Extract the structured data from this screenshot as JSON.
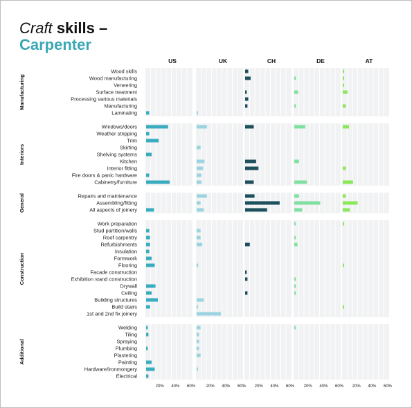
{
  "header": {
    "title_italic": "Craft",
    "title_bold": "skills –",
    "subtitle": "Carpenter"
  },
  "chart_data": {
    "type": "bar",
    "orientation": "horizontal",
    "layout": "small-multiples",
    "countries": [
      "US",
      "UK",
      "CH",
      "DE",
      "AT"
    ],
    "country_colors": [
      "#3aacc0",
      "#9bd4e0",
      "#1d4f5c",
      "#7fe0a0",
      "#8ce85a"
    ],
    "panel_xlim": [
      0,
      60
    ],
    "panel_ticks": [
      "20%",
      "40%",
      "60%"
    ],
    "groups": [
      {
        "name": "Manufacturing",
        "rows": [
          {
            "label": "Wood skills",
            "values": [
              0,
              0,
              4,
              0,
              1
            ]
          },
          {
            "label": "Wood manufacturing",
            "values": [
              0,
              0,
              7,
              2,
              1
            ]
          },
          {
            "label": "Veneering",
            "values": [
              0,
              0,
              0,
              0,
              1
            ]
          },
          {
            "label": "Surface treatment",
            "values": [
              0,
              0,
              2,
              5,
              6
            ]
          },
          {
            "label": "Processing various materials",
            "values": [
              0,
              0,
              4,
              0,
              0
            ]
          },
          {
            "label": "Manufacturing",
            "values": [
              0,
              0,
              3,
              2,
              4
            ]
          },
          {
            "label": "Laminating",
            "values": [
              4,
              1,
              0,
              0,
              0
            ]
          }
        ]
      },
      {
        "name": "Interiors",
        "rows": [
          {
            "label": "Windows/doors",
            "values": [
              28,
              13,
              11,
              14,
              8
            ]
          },
          {
            "label": "Weather stripping",
            "values": [
              4,
              0,
              0,
              0,
              0
            ]
          },
          {
            "label": "Trim",
            "values": [
              16,
              0,
              0,
              0,
              0
            ]
          },
          {
            "label": "Skirting",
            "values": [
              0,
              5,
              0,
              0,
              0
            ]
          },
          {
            "label": "Shelving systems",
            "values": [
              7,
              0,
              0,
              0,
              0
            ]
          },
          {
            "label": "Kitchen",
            "values": [
              0,
              10,
              14,
              6,
              0
            ]
          },
          {
            "label": "Interior fitting",
            "values": [
              0,
              8,
              17,
              0,
              4
            ]
          },
          {
            "label": "Fire doors & panic hardware",
            "values": [
              4,
              6,
              0,
              0,
              0
            ]
          },
          {
            "label": "Cabinetry/furniture",
            "values": [
              30,
              6,
              11,
              16,
              13
            ]
          }
        ]
      },
      {
        "name": "General",
        "rows": [
          {
            "label": "Repairs and maintenance",
            "values": [
              0,
              13,
              12,
              6,
              4
            ]
          },
          {
            "label": "Assembling/fitting",
            "values": [
              0,
              5,
              44,
              33,
              19
            ]
          },
          {
            "label": "All aspects of joinery",
            "values": [
              10,
              9,
              28,
              10,
              9
            ]
          }
        ]
      },
      {
        "name": "Construction",
        "rows": [
          {
            "label": "Work preparation",
            "values": [
              0,
              0,
              0,
              1,
              1
            ]
          },
          {
            "label": "Stud partition/walls",
            "values": [
              4,
              5,
              0,
              0,
              0
            ]
          },
          {
            "label": "Roof carpentry",
            "values": [
              5,
              5,
              0,
              1,
              0
            ]
          },
          {
            "label": "Refurbishments",
            "values": [
              5,
              7,
              6,
              4,
              0
            ]
          },
          {
            "label": "Insulation",
            "values": [
              4,
              0,
              0,
              0,
              0
            ]
          },
          {
            "label": "Formwork",
            "values": [
              7,
              0,
              0,
              0,
              0
            ]
          },
          {
            "label": "Flooring",
            "values": [
              11,
              2,
              0,
              0,
              1
            ]
          },
          {
            "label": "Facade construction",
            "values": [
              0,
              0,
              2,
              0,
              0
            ]
          },
          {
            "label": "Exhibition stand construction",
            "values": [
              0,
              0,
              3,
              2,
              0
            ]
          },
          {
            "label": "Drywall",
            "values": [
              12,
              0,
              0,
              2,
              0
            ]
          },
          {
            "label": "Ceiling",
            "values": [
              7,
              0,
              3,
              2,
              0
            ]
          },
          {
            "label": "Building structures",
            "values": [
              15,
              9,
              0,
              0,
              0
            ]
          },
          {
            "label": "Build stairs",
            "values": [
              5,
              1,
              0,
              0,
              1
            ]
          },
          {
            "label": "1st and 2nd fix joinery",
            "values": [
              0,
              31,
              0,
              0,
              0
            ]
          }
        ]
      },
      {
        "name": "Additional",
        "rows": [
          {
            "label": "Welding",
            "values": [
              2,
              5,
              0,
              1,
              0
            ]
          },
          {
            "label": "Tiling",
            "values": [
              3,
              3,
              0,
              0,
              0
            ]
          },
          {
            "label": "Spraying",
            "values": [
              0,
              3,
              0,
              0,
              0
            ]
          },
          {
            "label": "Plumbing",
            "values": [
              2,
              3,
              0,
              0,
              0
            ]
          },
          {
            "label": "Plastering",
            "values": [
              0,
              5,
              0,
              0,
              0
            ]
          },
          {
            "label": "Painting",
            "values": [
              7,
              0,
              0,
              0,
              0
            ]
          },
          {
            "label": "Hardware/ironmongery",
            "values": [
              11,
              1,
              0,
              0,
              0
            ]
          },
          {
            "label": "Electrical",
            "values": [
              3,
              0,
              0,
              0,
              0
            ]
          }
        ]
      }
    ]
  }
}
